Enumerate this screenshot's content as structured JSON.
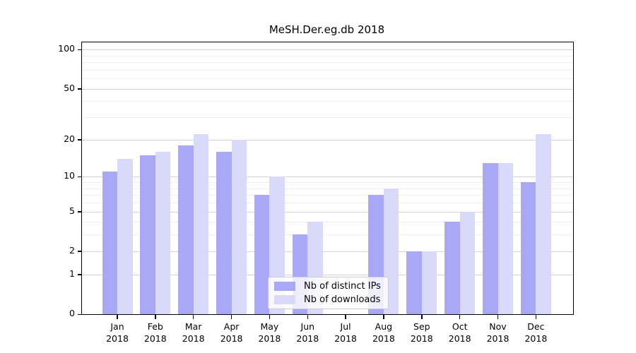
{
  "title": "MeSH.Der.eg.db 2018",
  "colors": {
    "ips_bar": "#a8a8f6",
    "downloads_bar": "#d9d9f9",
    "grid_major": "#d2d2d2",
    "grid_minor": "#efefef",
    "axis": "#000000",
    "legend_border": "#cccccc"
  },
  "chart_data": {
    "type": "bar",
    "title": "MeSH.Der.eg.db 2018",
    "scale": "log1p",
    "categories": [
      "Jan",
      "Feb",
      "Mar",
      "Apr",
      "May",
      "Jun",
      "Jul",
      "Aug",
      "Sep",
      "Oct",
      "Nov",
      "Dec"
    ],
    "year": "2018",
    "series": [
      {
        "name": "Nb of distinct IPs",
        "values": [
          11,
          15,
          18,
          16,
          7,
          3,
          0,
          7,
          2,
          4,
          13,
          9
        ]
      },
      {
        "name": "Nb of downloads",
        "values": [
          14,
          16,
          22,
          20,
          10,
          4,
          0,
          8,
          2,
          5,
          13,
          22
        ]
      }
    ],
    "yticks": [
      0,
      1,
      2,
      5,
      10,
      20,
      50,
      100
    ],
    "yticks_minor": [
      3,
      4,
      6,
      7,
      8,
      9,
      30,
      40,
      60,
      70,
      80,
      90
    ],
    "ylim": [
      0,
      113
    ],
    "xlabel": "",
    "ylabel": "",
    "grid": "horizontal",
    "legend_position": "bottom-center"
  }
}
